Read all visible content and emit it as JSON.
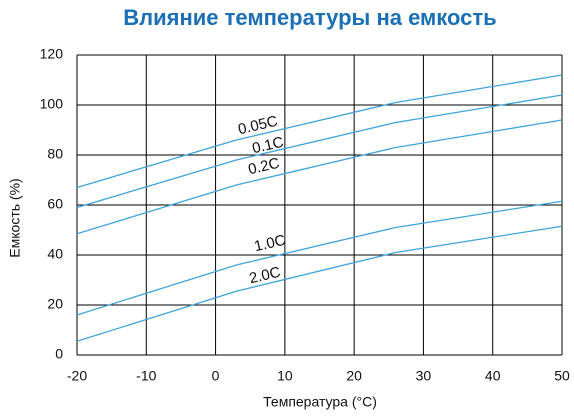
{
  "chart_data": {
    "type": "line",
    "title": "Влияние температуры на емкость",
    "x_label": "Температура (°C)",
    "y_label": "Емкость (%)",
    "x": [
      -20,
      3,
      26,
      50
    ],
    "series": [
      {
        "name": "0.05C",
        "color": "#3fa3dc",
        "values": [
          67,
          86,
          101,
          112
        ]
      },
      {
        "name": "0.1C",
        "color": "#3fa3dc",
        "values": [
          59,
          78,
          93,
          104
        ]
      },
      {
        "name": "0.2C",
        "color": "#3fa3dc",
        "values": [
          48.5,
          68,
          83,
          94
        ]
      },
      {
        "name": "1.0C",
        "color": "#3fa3dc",
        "values": [
          16,
          36,
          51,
          61.5
        ]
      },
      {
        "name": "2.0C",
        "color": "#3fa3dc",
        "values": [
          5.5,
          25.5,
          41,
          51.5
        ]
      }
    ],
    "xlim": [
      -20,
      50
    ],
    "xticks": [
      -20,
      -10,
      0,
      10,
      20,
      30,
      40,
      50
    ],
    "ylim": [
      0,
      120
    ],
    "yticks": [
      0,
      20,
      40,
      60,
      80,
      100,
      120
    ],
    "grid": true
  }
}
